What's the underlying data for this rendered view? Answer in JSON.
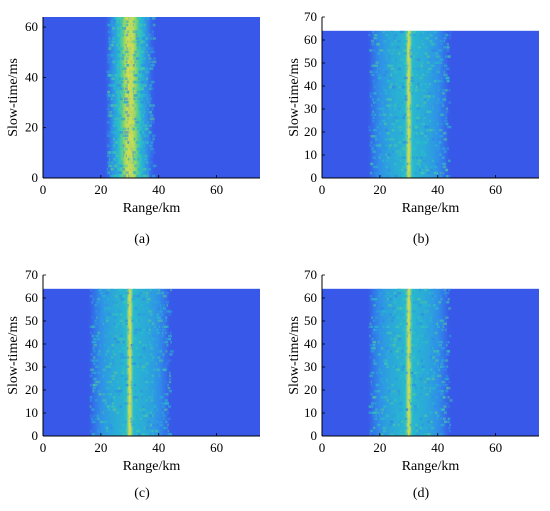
{
  "chart_data": [
    {
      "panel": "(a)",
      "type": "heatmap",
      "xlabel": "Range/km",
      "ylabel": "Slow-time/ms",
      "xlim": [
        0,
        75
      ],
      "ylim": [
        0,
        64
      ],
      "xticks": [
        0,
        20,
        40,
        60
      ],
      "yticks": [
        0,
        20,
        40,
        60
      ],
      "data_extent": {
        "x": [
          0,
          75
        ],
        "y": [
          0,
          64
        ]
      },
      "target_range_km": 30,
      "energy_spread_km": [
        22,
        38
      ],
      "colormap": [
        "#3b3ee8",
        "#2f8fe8",
        "#27c3c8",
        "#7fd36a",
        "#e9e04a"
      ]
    },
    {
      "panel": "(b)",
      "type": "heatmap",
      "xlabel": "Range/km",
      "ylabel": "Slow-time/ms",
      "xlim": [
        0,
        75
      ],
      "ylim": [
        0,
        70
      ],
      "xticks": [
        0,
        20,
        40,
        60
      ],
      "yticks": [
        0,
        10,
        20,
        30,
        40,
        50,
        60,
        70
      ],
      "data_extent": {
        "x": [
          0,
          75
        ],
        "y": [
          0,
          64
        ]
      },
      "target_range_km": 30,
      "energy_spread_km": [
        16,
        44
      ],
      "colormap": [
        "#3b3ee8",
        "#2f8fe8",
        "#27c3c8",
        "#7fd36a",
        "#e9e04a"
      ]
    },
    {
      "panel": "(c)",
      "type": "heatmap",
      "xlabel": "Range/km",
      "ylabel": "Slow-time/ms",
      "xlim": [
        0,
        75
      ],
      "ylim": [
        0,
        70
      ],
      "xticks": [
        0,
        20,
        40,
        60
      ],
      "yticks": [
        0,
        10,
        20,
        30,
        40,
        50,
        60,
        70
      ],
      "data_extent": {
        "x": [
          0,
          75
        ],
        "y": [
          0,
          64
        ]
      },
      "target_range_km": 30,
      "energy_spread_km": [
        16,
        44
      ],
      "colormap": [
        "#3b3ee8",
        "#2f8fe8",
        "#27c3c8",
        "#7fd36a",
        "#e9e04a"
      ]
    },
    {
      "panel": "(d)",
      "type": "heatmap",
      "xlabel": "Range/km",
      "ylabel": "Slow-time/ms",
      "xlim": [
        0,
        75
      ],
      "ylim": [
        0,
        70
      ],
      "xticks": [
        0,
        20,
        40,
        60
      ],
      "yticks": [
        0,
        10,
        20,
        30,
        40,
        50,
        60,
        70
      ],
      "data_extent": {
        "x": [
          0,
          75
        ],
        "y": [
          0,
          64
        ]
      },
      "target_range_km": 30,
      "energy_spread_km": [
        16,
        44
      ],
      "colormap": [
        "#3b3ee8",
        "#2f8fe8",
        "#27c3c8",
        "#7fd36a",
        "#e9e04a"
      ]
    }
  ],
  "captions": [
    "(a)",
    "(b)",
    "(c)",
    "(d)"
  ]
}
